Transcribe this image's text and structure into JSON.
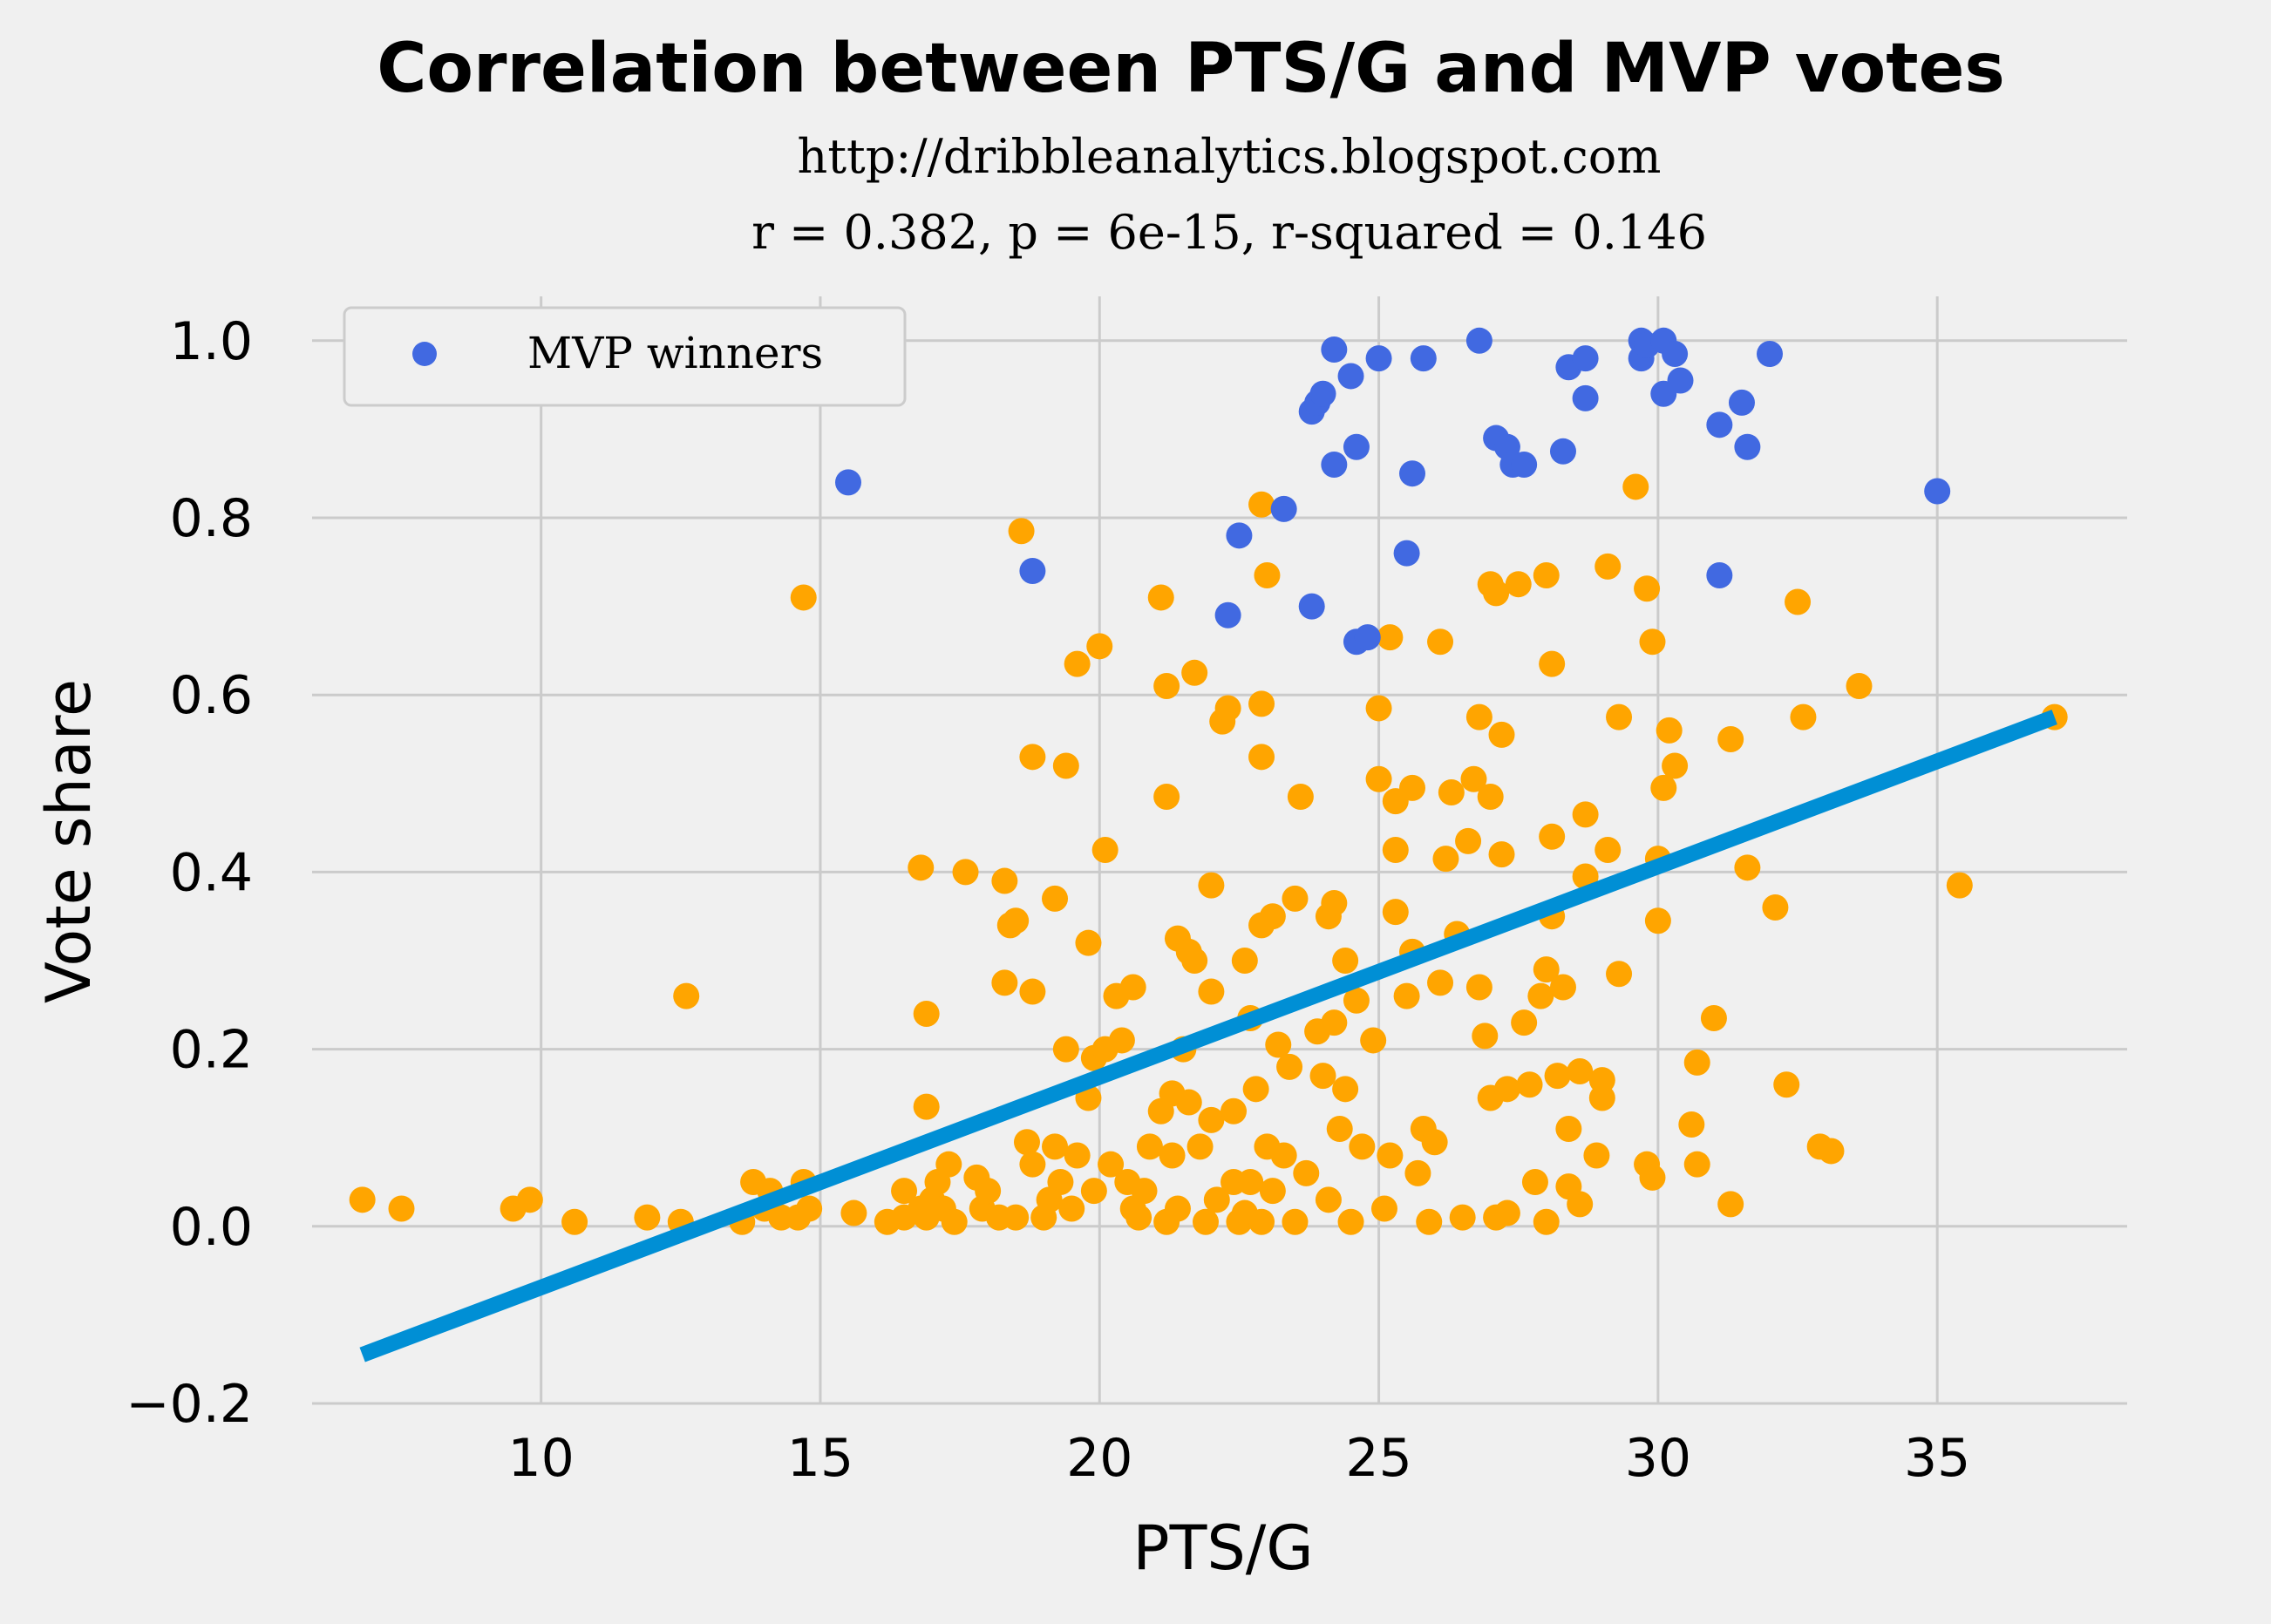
{
  "chart_data": {
    "type": "scatter",
    "title": "Correlation between PTS/G and MVP votes",
    "subtitle_lines": [
      "http://dribbleanalytics.blogspot.com",
      "r = 0.382, p = 6e-15, r-squared = 0.146"
    ],
    "xlabel": "PTS/G",
    "ylabel": "Vote share",
    "xlim": [
      5.9,
      38.4
    ],
    "ylim": [
      -0.2,
      1.05
    ],
    "x_ticks": [
      10,
      15,
      20,
      25,
      30,
      35
    ],
    "y_ticks": [
      -0.2,
      0.0,
      0.2,
      0.4,
      0.6,
      0.8,
      1.0
    ],
    "x_tick_labels": [
      "10",
      "15",
      "20",
      "25",
      "30",
      "35"
    ],
    "y_tick_labels": [
      "−0.2",
      "0.0",
      "0.2",
      "0.4",
      "0.6",
      "0.8",
      "1.0"
    ],
    "grid": true,
    "legend_position": "upper-left",
    "legend_entries": [
      "MVP winners"
    ],
    "colors": {
      "mvp": "#4169e1",
      "others": "#ffa500",
      "fit": "#008fd5",
      "grid": "#cbcbcb",
      "background": "#f0f0f0"
    },
    "fit_line": {
      "x": [
        6.8,
        37.1
      ],
      "y": [
        -0.145,
        0.575
      ]
    },
    "series": [
      {
        "name": "MVP winners",
        "points": [
          [
            15.5,
            0.84
          ],
          [
            18.8,
            0.74
          ],
          [
            22.3,
            0.69
          ],
          [
            22.5,
            0.78
          ],
          [
            23.3,
            0.81
          ],
          [
            23.8,
            0.7
          ],
          [
            23.8,
            0.92
          ],
          [
            23.9,
            0.93
          ],
          [
            24.0,
            0.94
          ],
          [
            24.2,
            0.99
          ],
          [
            24.2,
            0.86
          ],
          [
            24.5,
            0.96
          ],
          [
            24.6,
            0.88
          ],
          [
            24.6,
            0.66
          ],
          [
            24.8,
            0.665
          ],
          [
            25.0,
            0.98
          ],
          [
            25.5,
            0.76
          ],
          [
            25.6,
            0.85
          ],
          [
            25.8,
            0.98
          ],
          [
            26.8,
            1.0
          ],
          [
            27.1,
            0.89
          ],
          [
            27.3,
            0.88
          ],
          [
            27.4,
            0.86
          ],
          [
            27.6,
            0.86
          ],
          [
            28.3,
            0.875
          ],
          [
            28.4,
            0.97
          ],
          [
            28.7,
            0.935
          ],
          [
            28.7,
            0.98
          ],
          [
            29.7,
            1.0
          ],
          [
            29.7,
            0.98
          ],
          [
            29.8,
            0.995
          ],
          [
            30.1,
            0.94
          ],
          [
            30.1,
            1.0
          ],
          [
            30.3,
            0.985
          ],
          [
            30.4,
            0.955
          ],
          [
            31.1,
            0.905
          ],
          [
            31.1,
            0.735
          ],
          [
            31.5,
            0.93
          ],
          [
            31.6,
            0.88
          ],
          [
            32.0,
            0.985
          ],
          [
            35.0,
            0.83
          ]
        ]
      },
      {
        "name": "",
        "points": [
          [
            6.8,
            0.03
          ],
          [
            7.5,
            0.02
          ],
          [
            9.5,
            0.02
          ],
          [
            9.8,
            0.03
          ],
          [
            10.6,
            0.005
          ],
          [
            11.9,
            0.01
          ],
          [
            12.5,
            0.005
          ],
          [
            12.6,
            0.26
          ],
          [
            13.6,
            0.005
          ],
          [
            13.8,
            0.05
          ],
          [
            14.0,
            0.02
          ],
          [
            14.1,
            0.04
          ],
          [
            14.3,
            0.01
          ],
          [
            14.6,
            0.01
          ],
          [
            14.7,
            0.05
          ],
          [
            14.7,
            0.71
          ],
          [
            14.8,
            0.02
          ],
          [
            15.6,
            0.015
          ],
          [
            16.2,
            0.005
          ],
          [
            16.5,
            0.01
          ],
          [
            16.5,
            0.04
          ],
          [
            16.8,
            0.405
          ],
          [
            16.8,
            0.02
          ],
          [
            16.9,
            0.01
          ],
          [
            16.9,
            0.24
          ],
          [
            16.9,
            0.135
          ],
          [
            17.0,
            0.03
          ],
          [
            17.1,
            0.05
          ],
          [
            17.2,
            0.02
          ],
          [
            17.3,
            0.07
          ],
          [
            17.4,
            0.005
          ],
          [
            17.6,
            0.4
          ],
          [
            17.8,
            0.055
          ],
          [
            17.9,
            0.02
          ],
          [
            18.0,
            0.04
          ],
          [
            18.2,
            0.01
          ],
          [
            18.3,
            0.39
          ],
          [
            18.3,
            0.275
          ],
          [
            18.4,
            0.34
          ],
          [
            18.5,
            0.345
          ],
          [
            18.5,
            0.01
          ],
          [
            18.6,
            0.785
          ],
          [
            18.7,
            0.095
          ],
          [
            18.8,
            0.53
          ],
          [
            18.8,
            0.265
          ],
          [
            18.8,
            0.07
          ],
          [
            19.0,
            0.01
          ],
          [
            19.1,
            0.03
          ],
          [
            19.2,
            0.09
          ],
          [
            19.2,
            0.37
          ],
          [
            19.3,
            0.05
          ],
          [
            19.4,
            0.52
          ],
          [
            19.4,
            0.2
          ],
          [
            19.5,
            0.02
          ],
          [
            19.6,
            0.635
          ],
          [
            19.6,
            0.08
          ],
          [
            19.8,
            0.32
          ],
          [
            19.8,
            0.145
          ],
          [
            19.9,
            0.19
          ],
          [
            19.9,
            0.04
          ],
          [
            20.0,
            0.655
          ],
          [
            20.1,
            0.425
          ],
          [
            20.1,
            0.2
          ],
          [
            20.2,
            0.07
          ],
          [
            20.3,
            0.26
          ],
          [
            20.4,
            0.21
          ],
          [
            20.5,
            0.05
          ],
          [
            20.6,
            0.02
          ],
          [
            20.6,
            0.27
          ],
          [
            20.7,
            0.01
          ],
          [
            20.8,
            0.04
          ],
          [
            20.9,
            0.09
          ],
          [
            21.1,
            0.71
          ],
          [
            21.1,
            0.13
          ],
          [
            21.2,
            0.005
          ],
          [
            21.2,
            0.61
          ],
          [
            21.2,
            0.485
          ],
          [
            21.3,
            0.15
          ],
          [
            21.3,
            0.08
          ],
          [
            21.4,
            0.325
          ],
          [
            21.4,
            0.02
          ],
          [
            21.5,
            0.2
          ],
          [
            21.6,
            0.14
          ],
          [
            21.6,
            0.31
          ],
          [
            21.7,
            0.625
          ],
          [
            21.7,
            0.3
          ],
          [
            21.8,
            0.09
          ],
          [
            21.9,
            0.005
          ],
          [
            22.0,
            0.385
          ],
          [
            22.0,
            0.265
          ],
          [
            22.0,
            0.12
          ],
          [
            22.1,
            0.03
          ],
          [
            22.2,
            0.57
          ],
          [
            22.3,
            0.585
          ],
          [
            22.4,
            0.05
          ],
          [
            22.4,
            0.13
          ],
          [
            22.5,
            0.005
          ],
          [
            22.6,
            0.3
          ],
          [
            22.6,
            0.015
          ],
          [
            22.7,
            0.235
          ],
          [
            22.7,
            0.05
          ],
          [
            22.8,
            0.155
          ],
          [
            22.9,
            0.815
          ],
          [
            22.9,
            0.53
          ],
          [
            22.9,
            0.59
          ],
          [
            22.9,
            0.34
          ],
          [
            22.9,
            0.005
          ],
          [
            23.0,
            0.735
          ],
          [
            23.0,
            0.09
          ],
          [
            23.1,
            0.35
          ],
          [
            23.1,
            0.04
          ],
          [
            23.2,
            0.205
          ],
          [
            23.3,
            0.08
          ],
          [
            23.4,
            0.18
          ],
          [
            23.5,
            0.37
          ],
          [
            23.5,
            0.005
          ],
          [
            23.6,
            0.485
          ],
          [
            23.7,
            0.06
          ],
          [
            23.9,
            0.22
          ],
          [
            24.0,
            0.17
          ],
          [
            24.1,
            0.35
          ],
          [
            24.1,
            0.03
          ],
          [
            24.2,
            0.23
          ],
          [
            24.2,
            0.365
          ],
          [
            24.3,
            0.11
          ],
          [
            24.4,
            0.3
          ],
          [
            24.4,
            0.155
          ],
          [
            24.5,
            0.005
          ],
          [
            24.6,
            0.255
          ],
          [
            24.7,
            0.09
          ],
          [
            24.9,
            0.21
          ],
          [
            25.0,
            0.585
          ],
          [
            25.0,
            0.505
          ],
          [
            25.1,
            0.02
          ],
          [
            25.2,
            0.665
          ],
          [
            25.2,
            0.08
          ],
          [
            25.3,
            0.48
          ],
          [
            25.3,
            0.425
          ],
          [
            25.3,
            0.355
          ],
          [
            25.5,
            0.26
          ],
          [
            25.6,
            0.495
          ],
          [
            25.6,
            0.31
          ],
          [
            25.7,
            0.06
          ],
          [
            25.8,
            0.11
          ],
          [
            25.9,
            0.005
          ],
          [
            26.0,
            0.095
          ],
          [
            26.1,
            0.66
          ],
          [
            26.1,
            0.275
          ],
          [
            26.2,
            0.415
          ],
          [
            26.3,
            0.49
          ],
          [
            26.4,
            0.33
          ],
          [
            26.5,
            0.01
          ],
          [
            26.6,
            0.435
          ],
          [
            26.7,
            0.505
          ],
          [
            26.8,
            0.575
          ],
          [
            26.8,
            0.27
          ],
          [
            26.9,
            0.215
          ],
          [
            27.0,
            0.485
          ],
          [
            27.0,
            0.145
          ],
          [
            27.0,
            0.725
          ],
          [
            27.1,
            0.715
          ],
          [
            27.1,
            0.01
          ],
          [
            27.2,
            0.42
          ],
          [
            27.2,
            0.555
          ],
          [
            27.3,
            0.155
          ],
          [
            27.3,
            0.015
          ],
          [
            27.5,
            0.725
          ],
          [
            27.6,
            0.23
          ],
          [
            27.7,
            0.16
          ],
          [
            27.8,
            0.05
          ],
          [
            27.9,
            0.26
          ],
          [
            28.0,
            0.735
          ],
          [
            28.0,
            0.29
          ],
          [
            28.0,
            0.005
          ],
          [
            28.1,
            0.635
          ],
          [
            28.1,
            0.44
          ],
          [
            28.1,
            0.35
          ],
          [
            28.2,
            0.17
          ],
          [
            28.3,
            0.27
          ],
          [
            28.4,
            0.11
          ],
          [
            28.4,
            0.045
          ],
          [
            28.6,
            0.175
          ],
          [
            28.6,
            0.025
          ],
          [
            28.7,
            0.395
          ],
          [
            28.7,
            0.465
          ],
          [
            28.9,
            0.08
          ],
          [
            29.0,
            0.165
          ],
          [
            29.0,
            0.145
          ],
          [
            29.1,
            0.745
          ],
          [
            29.1,
            0.425
          ],
          [
            29.3,
            0.575
          ],
          [
            29.3,
            0.285
          ],
          [
            29.6,
            0.835
          ],
          [
            29.8,
            0.72
          ],
          [
            29.8,
            0.07
          ],
          [
            29.9,
            0.66
          ],
          [
            29.9,
            0.055
          ],
          [
            30.0,
            0.415
          ],
          [
            30.0,
            0.345
          ],
          [
            30.1,
            0.495
          ],
          [
            30.2,
            0.56
          ],
          [
            30.3,
            0.52
          ],
          [
            30.6,
            0.115
          ],
          [
            30.7,
            0.185
          ],
          [
            30.7,
            0.07
          ],
          [
            31.0,
            0.235
          ],
          [
            31.3,
            0.55
          ],
          [
            31.3,
            0.025
          ],
          [
            31.6,
            0.405
          ],
          [
            32.1,
            0.36
          ],
          [
            32.3,
            0.16
          ],
          [
            32.5,
            0.705
          ],
          [
            32.6,
            0.575
          ],
          [
            32.9,
            0.09
          ],
          [
            33.1,
            0.085
          ],
          [
            33.6,
            0.61
          ],
          [
            35.4,
            0.385
          ],
          [
            37.1,
            0.575
          ]
        ]
      }
    ]
  }
}
